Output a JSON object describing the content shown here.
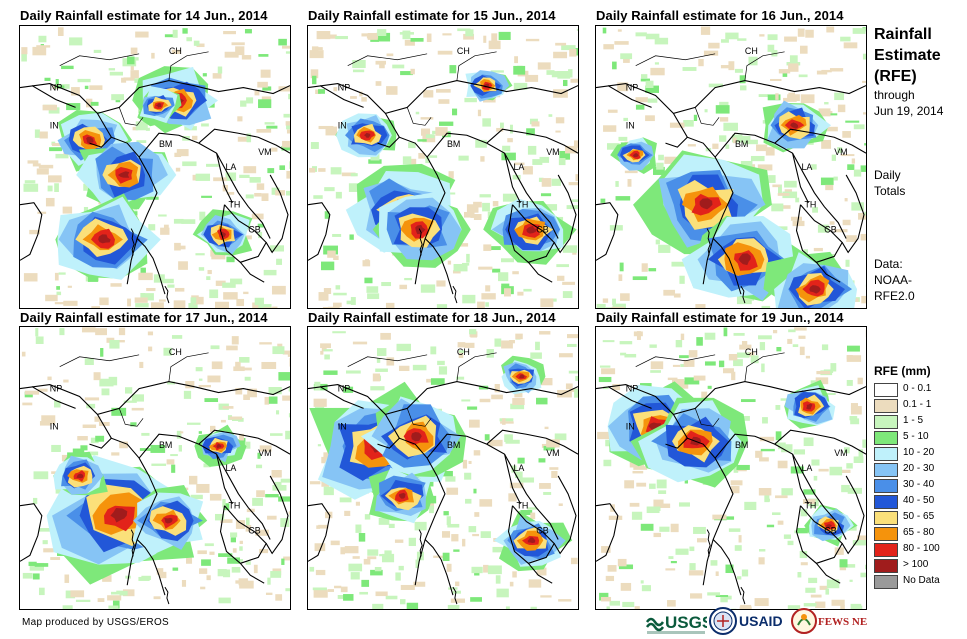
{
  "panels": [
    {
      "title": "Daily Rainfall estimate for 14 Jun., 2014"
    },
    {
      "title": "Daily Rainfall estimate for 15 Jun., 2014"
    },
    {
      "title": "Daily Rainfall estimate for 16 Jun., 2014"
    },
    {
      "title": "Daily Rainfall estimate for 17 Jun., 2014"
    },
    {
      "title": "Daily Rainfall estimate for 18 Jun., 2014"
    },
    {
      "title": "Daily Rainfall estimate for 19 Jun., 2014"
    }
  ],
  "country_labels": [
    "CH",
    "NP",
    "IN",
    "BM",
    "LA",
    "VM",
    "TH",
    "CB"
  ],
  "side": {
    "title_line1": "Rainfall",
    "title_line2": "Estimate",
    "title_line3": "(RFE)",
    "through": "through",
    "date": "Jun 19, 2014",
    "daily": "Daily",
    "totals": "Totals",
    "data_label": "Data:",
    "data_source1": "NOAA-",
    "data_source2": "RFE2.0"
  },
  "legend": {
    "title": "RFE (mm)",
    "items": [
      {
        "label": "0 - 0.1",
        "color": "#ffffff"
      },
      {
        "label": "0.1 - 1",
        "color": "#ecdcbe"
      },
      {
        "label": "1 - 5",
        "color": "#c7f5bd"
      },
      {
        "label": "5 - 10",
        "color": "#7ee87a"
      },
      {
        "label": "10 - 20",
        "color": "#bff1fb"
      },
      {
        "label": "20 - 30",
        "color": "#86c4f5"
      },
      {
        "label": "30 - 40",
        "color": "#4a8fe8"
      },
      {
        "label": "40 - 50",
        "color": "#2257d8"
      },
      {
        "label": "50 - 65",
        "color": "#fbe07a"
      },
      {
        "label": "65 - 80",
        "color": "#f5930c"
      },
      {
        "label": "80 - 100",
        "color": "#e2231a"
      },
      {
        "label": "> 100",
        "color": "#a01c1c"
      },
      {
        "label": "No Data",
        "color": "#9a9a9a"
      }
    ]
  },
  "credit": "Map produced by USGS/EROS",
  "logos": {
    "usgs": "USGS",
    "usaid": "USAID",
    "fews": "FEWS NET"
  },
  "icons": [
    "usgs-logo-icon",
    "usaid-seal-icon",
    "fews-net-logo-icon"
  ]
}
